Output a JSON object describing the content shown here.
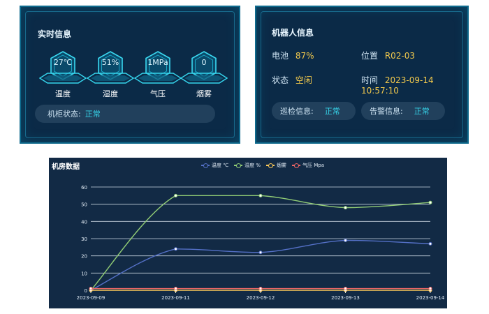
{
  "realtime": {
    "title": "实时信息",
    "gauges": [
      {
        "value": "27℃",
        "label": "温度"
      },
      {
        "value": "51%",
        "label": "湿度"
      },
      {
        "value": "1MPa",
        "label": "气压"
      },
      {
        "value": "0",
        "label": "烟雾"
      }
    ],
    "cabinet_status_label": "机柜状态:",
    "cabinet_status_value": "正常"
  },
  "robot": {
    "title": "机器人信息",
    "battery_label": "电池",
    "battery_value": "87%",
    "position_label": "位置",
    "position_value": "R02-03",
    "state_label": "状态",
    "state_value": "空闲",
    "time_label": "时间",
    "time_value": "2023-09-14 10:57:10",
    "patrol_label": "巡检信息:",
    "patrol_value": "正常",
    "alarm_label": "告警信息:",
    "alarm_value": "正常"
  },
  "colors": {
    "temperature": "#5470c6",
    "humidity": "#91cc75",
    "smoke": "#fac858",
    "pressure": "#ee6666",
    "cyan": "#36d3e8",
    "yellow": "#f2c94c"
  },
  "chart_data": {
    "type": "line",
    "title": "机房数据",
    "categories": [
      "2023-09-09",
      "2023-09-11",
      "2023-09-12",
      "2023-09-13",
      "2023-09-14"
    ],
    "ylim": [
      0,
      60
    ],
    "yticks": [
      "0",
      "10",
      "20",
      "30",
      "40",
      "50",
      "60"
    ],
    "grid": true,
    "legend_position": "top",
    "series": [
      {
        "name": "温度 ℃",
        "values": [
          0,
          24,
          22,
          29,
          27
        ]
      },
      {
        "name": "湿度 %",
        "values": [
          0,
          55,
          55,
          48,
          51
        ]
      },
      {
        "name": "烟雾",
        "values": [
          0,
          0,
          0,
          0,
          0
        ]
      },
      {
        "name": "气压 Mpa",
        "values": [
          1,
          1,
          1,
          1,
          1
        ]
      }
    ]
  }
}
